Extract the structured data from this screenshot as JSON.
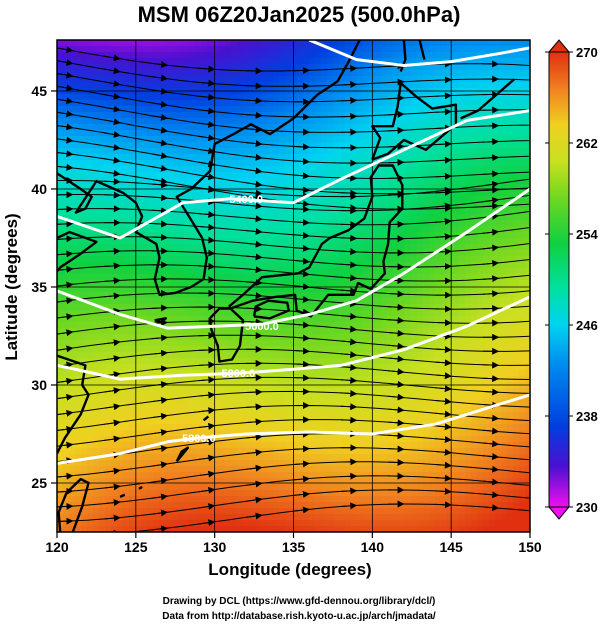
{
  "title": "MSM 06Z20Jan2025 (500.0hPa)",
  "map": {
    "lon_range": [
      120,
      150
    ],
    "lat_range": [
      22.5,
      47.6
    ],
    "x_label": "Longitude (degrees)",
    "y_label": "Latitude  (degrees)",
    "x_ticks": [
      "120",
      "125",
      "130",
      "135",
      "140",
      "145",
      "150"
    ],
    "y_ticks": [
      "25",
      "30",
      "35",
      "40",
      "45"
    ],
    "x_tick_values": [
      120,
      125,
      130,
      135,
      140,
      145,
      150
    ],
    "y_tick_values": [
      25,
      30,
      35,
      40,
      45
    ],
    "grid": true,
    "field": "temperature (shaded)",
    "vector_field": "wind (streamlines with arrows, generally west to east)",
    "contours": [
      {
        "label": "5400.0",
        "label_position": [
          132.0,
          39.5
        ]
      },
      {
        "label": "5600.0",
        "label_position": [
          133.0,
          33.0
        ]
      },
      {
        "label": "5800.0",
        "label_position": [
          131.5,
          30.6
        ]
      },
      {
        "label": "5800.0",
        "label_position": [
          129.0,
          27.3
        ]
      }
    ]
  },
  "colorbar": {
    "min": 230,
    "max": 270,
    "tick_labels": [
      "270",
      "262",
      "254",
      "246",
      "238",
      "230"
    ],
    "tick_values": [
      270,
      262,
      254,
      246,
      238,
      230
    ],
    "colors": [
      "#ee10ee",
      "#4a10d0",
      "#0040e0",
      "#0090f0",
      "#00d4f0",
      "#00e0a0",
      "#10d040",
      "#70d820",
      "#c8e020",
      "#f0d020",
      "#f08020",
      "#e03010"
    ]
  },
  "credits": {
    "line1": "Drawing by DCL (https://www.gfd-dennou.org/library/dcl/)",
    "line2": "Data from http://database.rish.kyoto-u.ac.jp/arch/jmadata/"
  }
}
